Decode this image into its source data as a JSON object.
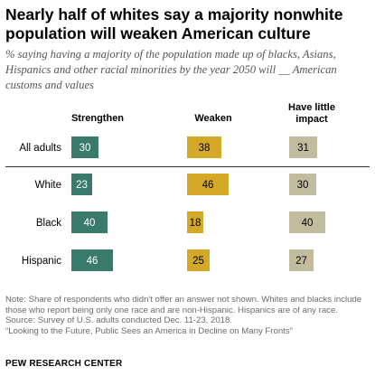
{
  "title_line1": "Nearly half of whites say a majority nonwhite",
  "title_line2": "population will weaken American culture",
  "subtitle": "% saying having a majority of the population made up of blacks, Asians, Hispanics and other racial minorities by the year 2050 will __ American customs and values",
  "colors": {
    "strengthen": "#3a7a6a",
    "weaken": "#d5a928",
    "little_impact": "#c2bc9f"
  },
  "chart_data": {
    "type": "bar",
    "categories": [
      "All adults",
      "White",
      "Black",
      "Hispanic"
    ],
    "series": [
      {
        "name": "Strengthen",
        "values": [
          30,
          23,
          40,
          46
        ]
      },
      {
        "name": "Weaken",
        "values": [
          38,
          46,
          18,
          25
        ]
      },
      {
        "name": "Have little impact",
        "values": [
          31,
          30,
          40,
          27
        ]
      }
    ]
  },
  "notes": {
    "note": "Note: Share of respondents who didn't offer an answer not shown. Whites and blacks include those who report being only one race and are non-Hispanic. Hispanics are of any race.",
    "source": "Source: Survey of U.S. adults conducted Dec. 11-23, 2018.",
    "report": "“Looking to the Future, Public Sees an America in Decline on Many Fronts”"
  },
  "brand": "PEW RESEARCH CENTER"
}
